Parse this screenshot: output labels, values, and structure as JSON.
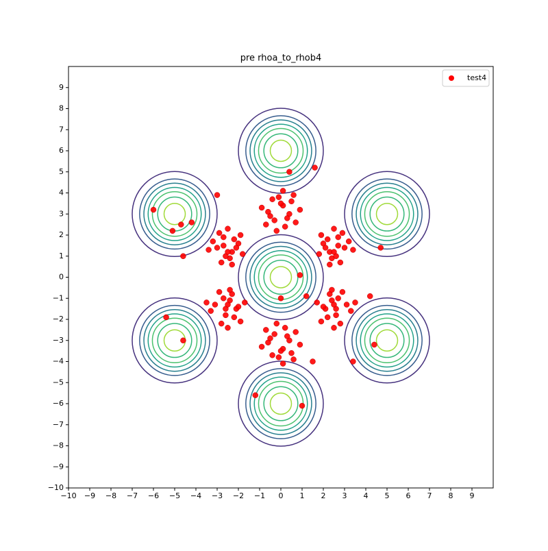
{
  "chart_data": {
    "type": "scatter",
    "title": "pre rhoa_to_rhob4",
    "xlim": [
      -10,
      10
    ],
    "ylim": [
      -10,
      10
    ],
    "xticks": [
      {
        "value": -10,
        "label": "−10"
      },
      {
        "value": -9,
        "label": "−9"
      },
      {
        "value": -8,
        "label": "−8"
      },
      {
        "value": -7,
        "label": "−7"
      },
      {
        "value": -6,
        "label": "−6"
      },
      {
        "value": -5,
        "label": "−5"
      },
      {
        "value": -4,
        "label": "−4"
      },
      {
        "value": -3,
        "label": "−3"
      },
      {
        "value": -2,
        "label": "−2"
      },
      {
        "value": -1,
        "label": "−1"
      },
      0,
      1,
      2,
      3,
      4,
      5,
      6,
      7,
      8,
      9
    ],
    "yticks": [
      {
        "value": -10,
        "label": "−10"
      },
      {
        "value": -9,
        "label": "−9"
      },
      {
        "value": -8,
        "label": "−8"
      },
      {
        "value": -7,
        "label": "−7"
      },
      {
        "value": -6,
        "label": "−6"
      },
      {
        "value": -5,
        "label": "−5"
      },
      {
        "value": -4,
        "label": "−4"
      },
      {
        "value": -3,
        "label": "−3"
      },
      {
        "value": -2,
        "label": "−2"
      },
      {
        "value": -1,
        "label": "−1"
      },
      0,
      1,
      2,
      3,
      4,
      5,
      6,
      7,
      8,
      9
    ],
    "legend": "upper right",
    "contours": {
      "centers": [
        [
          0,
          0
        ],
        [
          0,
          6
        ],
        [
          0,
          -6
        ],
        [
          -5,
          3
        ],
        [
          5,
          3
        ],
        [
          -5,
          -3
        ],
        [
          5,
          -3
        ]
      ],
      "radii": [
        2.0,
        1.65,
        1.45,
        1.25,
        1.05,
        0.8,
        0.5
      ],
      "colors": [
        "#46327e",
        "#365c8d",
        "#277f8e",
        "#1fa187",
        "#4ac16d",
        "#35b779",
        "#a0da39"
      ]
    },
    "series": [
      {
        "name": "test4",
        "color": "#ff0000",
        "x": [
          -0.6,
          -0.3,
          0.1,
          0.4,
          0.7,
          -0.9,
          0.2,
          -0.1,
          0.5,
          -0.5,
          0.9,
          -0.2,
          0.3,
          0,
          -0.7,
          0.6,
          -0.4,
          0.1,
          -0.6,
          -0.3,
          0.1,
          0.4,
          0.7,
          -0.9,
          0.2,
          -0.1,
          0.5,
          -0.5,
          0.9,
          -0.2,
          0.3,
          0,
          -0.7,
          0.6,
          -0.4,
          0.1,
          2.0,
          2.3,
          2.7,
          3.0,
          2.4,
          1.8,
          2.9,
          2.2,
          2.6,
          3.2,
          2.1,
          2.5,
          2.8,
          1.9,
          3.4,
          2.3,
          2.7,
          2.5,
          -2.0,
          -2.3,
          -2.7,
          -3.0,
          -2.4,
          -1.8,
          -2.9,
          -2.2,
          -2.6,
          -3.2,
          -2.1,
          -2.5,
          -2.8,
          -1.9,
          -3.4,
          -2.3,
          -2.7,
          -2.5,
          2.1,
          2.4,
          2.6,
          3.1,
          2.3,
          1.7,
          2.8,
          2.2,
          2.7,
          3.3,
          2.0,
          2.5,
          2.9,
          1.9,
          3.5,
          2.4,
          2.6,
          2.5,
          -2.1,
          -2.4,
          -2.6,
          -3.1,
          -2.3,
          -1.7,
          -2.8,
          -2.2,
          -2.7,
          -3.3,
          -2.0,
          -2.5,
          -2.9,
          -1.9,
          -3.5,
          -2.4,
          -2.6,
          -2.5,
          -6.0,
          -4.7,
          -5.1,
          -4.2,
          -5.4,
          4.4,
          4.7,
          -1.2,
          1.0,
          0.4,
          1.6,
          1.2,
          0.0,
          0.9,
          -4.6,
          3.4,
          -4.6,
          4.2,
          -3.0,
          1.5
        ],
        "y": [
          3.1,
          2.7,
          3.4,
          3.0,
          2.6,
          3.3,
          2.4,
          3.8,
          3.6,
          2.9,
          3.2,
          2.2,
          2.8,
          3.5,
          2.5,
          3.9,
          3.7,
          4.1,
          -3.1,
          -2.7,
          -3.4,
          -3.0,
          -2.6,
          -3.3,
          -2.4,
          -3.8,
          -3.6,
          -2.9,
          -3.2,
          -2.2,
          -2.8,
          -3.5,
          -2.5,
          -3.9,
          -3.7,
          -4.1,
          1.6,
          1.2,
          1.9,
          1.4,
          0.9,
          1.1,
          2.1,
          1.8,
          1.0,
          1.7,
          1.4,
          2.3,
          0.7,
          2.0,
          1.3,
          0.6,
          1.5,
          1.2,
          1.6,
          1.2,
          1.9,
          1.4,
          0.9,
          1.1,
          2.1,
          1.8,
          1.0,
          1.7,
          1.4,
          2.3,
          0.7,
          2.0,
          1.3,
          0.6,
          1.5,
          1.2,
          -1.5,
          -1.1,
          -1.8,
          -1.3,
          -0.8,
          -1.2,
          -2.2,
          -1.9,
          -1.0,
          -1.6,
          -1.4,
          -2.4,
          -0.7,
          -2.1,
          -1.2,
          -0.6,
          -1.5,
          -1.3,
          -1.5,
          -1.1,
          -1.8,
          -1.3,
          -0.8,
          -1.2,
          -2.2,
          -1.9,
          -1.0,
          -1.6,
          -1.4,
          -2.4,
          -0.7,
          -2.1,
          -1.2,
          -0.6,
          -1.5,
          -1.3,
          3.2,
          2.5,
          2.2,
          2.6,
          -1.9,
          -3.2,
          1.4,
          -5.6,
          -6.1,
          5.0,
          5.2,
          -0.9,
          -1.0,
          0.1,
          1.0,
          -4.0,
          -3.0,
          -0.9,
          3.9,
          -4.0
        ]
      }
    ]
  }
}
